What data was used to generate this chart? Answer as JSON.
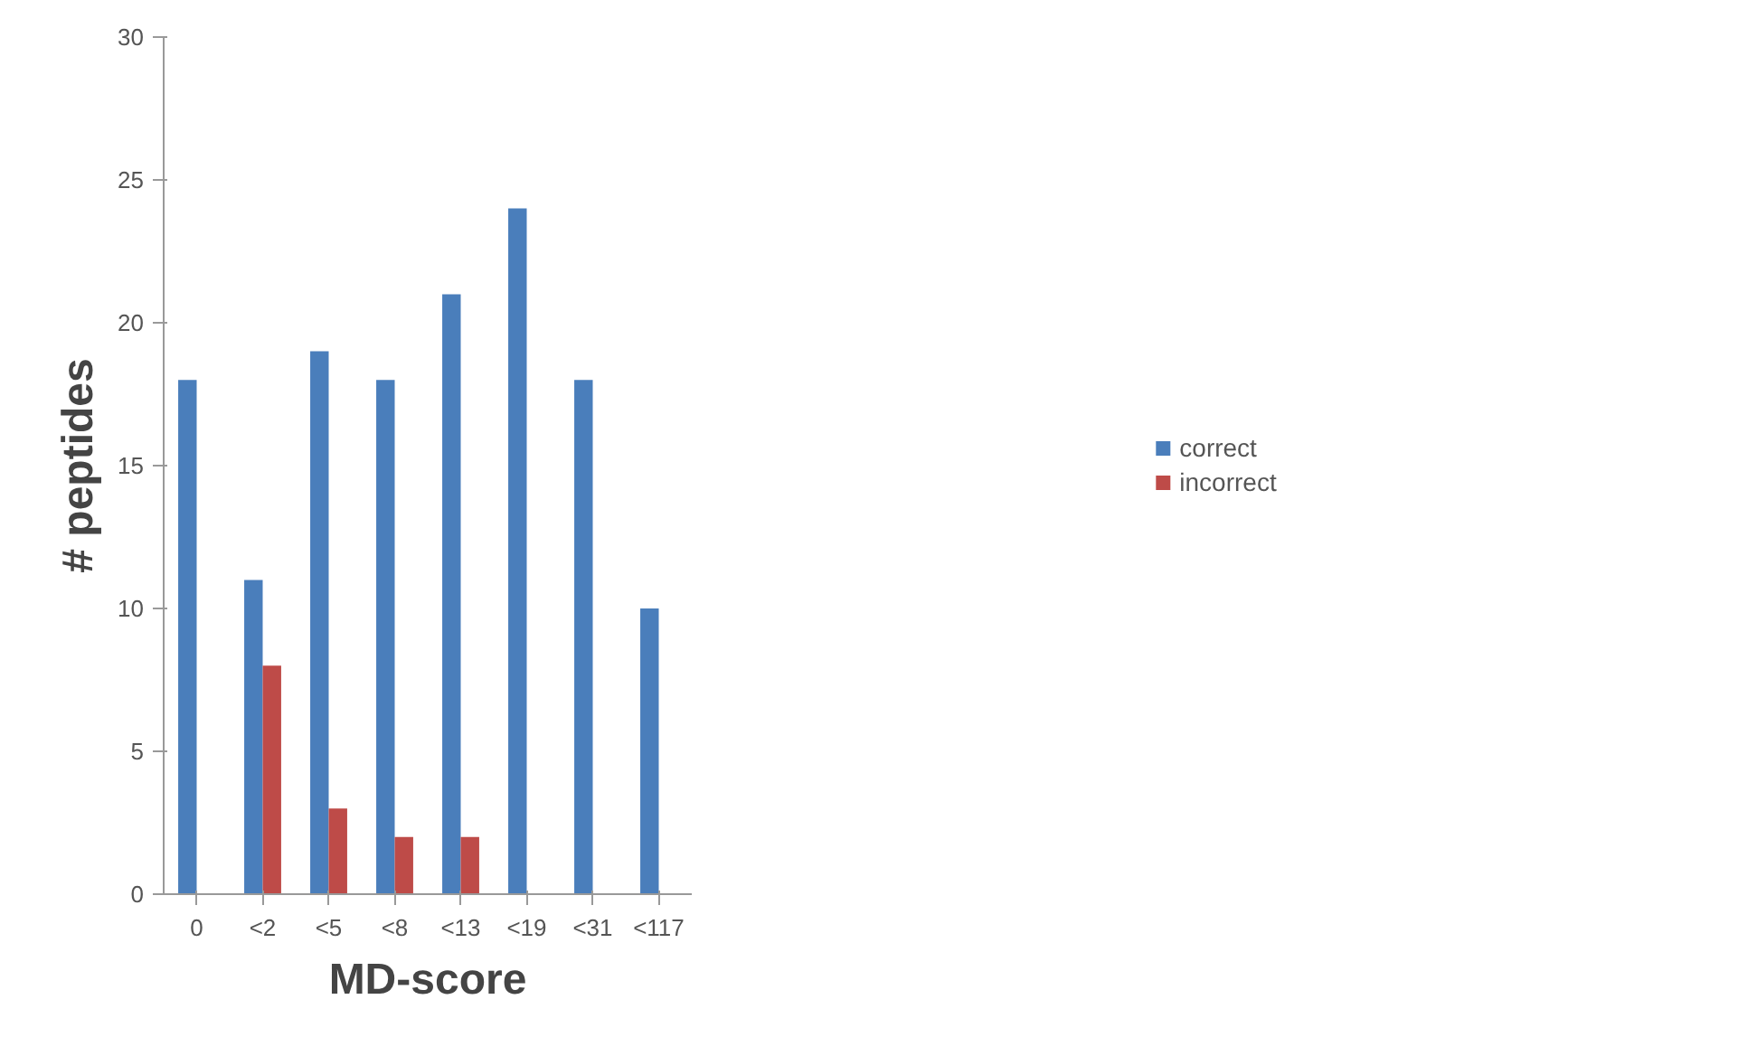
{
  "chart_data": {
    "type": "bar",
    "xlabel": "MD-score",
    "ylabel": "# peptides",
    "categories": [
      "0",
      "<2",
      "<5",
      "<8",
      "<13",
      "<19",
      "<31",
      "<117"
    ],
    "series": [
      {
        "name": "correct",
        "color": "#4a7ebb",
        "values": [
          18,
          11,
          19,
          18,
          21,
          24,
          18,
          10
        ]
      },
      {
        "name": "incorrect",
        "color": "#be4b48",
        "values": [
          0,
          8,
          3,
          2,
          2,
          0,
          0,
          0
        ]
      }
    ],
    "ylim": [
      0,
      30
    ],
    "yticks": [
      0,
      5,
      10,
      15,
      20,
      25,
      30
    ],
    "grid": false,
    "legend": "right"
  }
}
